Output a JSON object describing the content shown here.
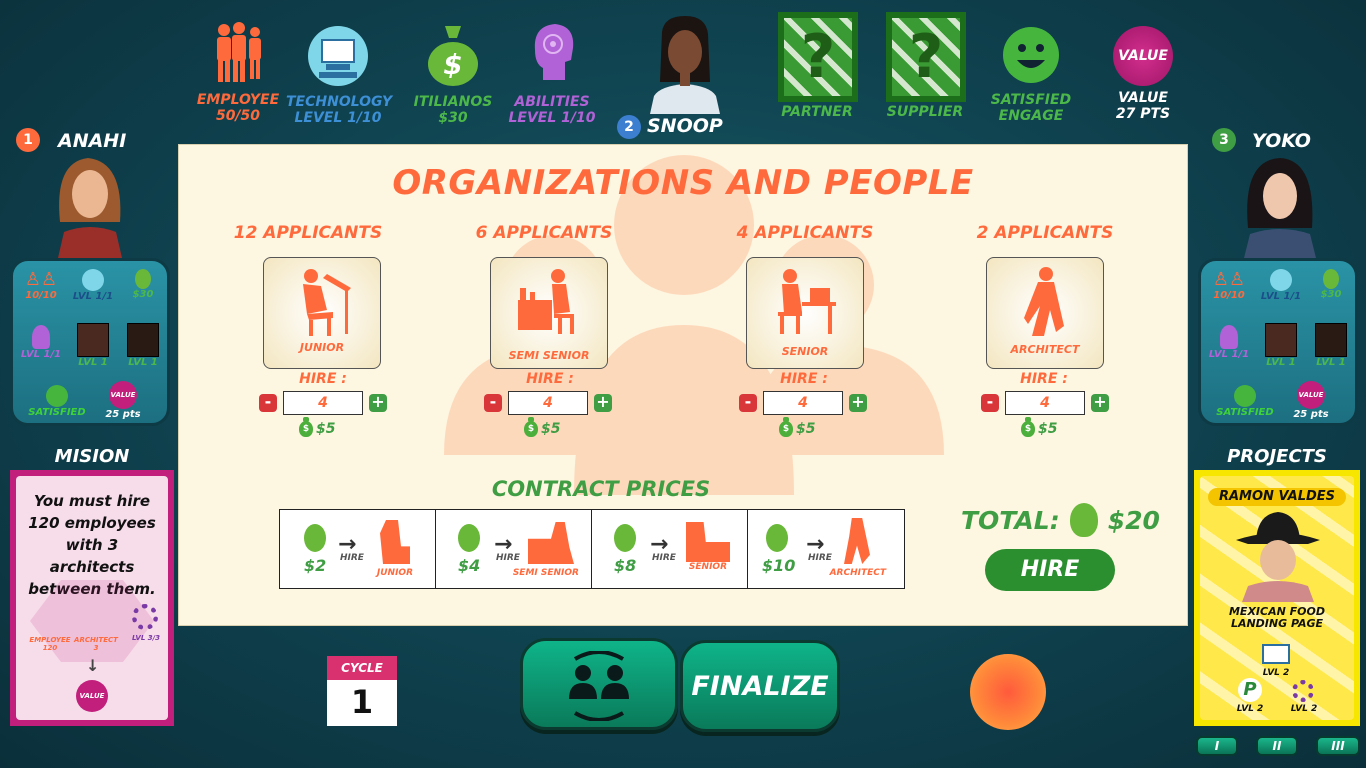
{
  "top_stats": {
    "employee": {
      "label": "EMPLOYEE",
      "value": "50/50"
    },
    "technology": {
      "label": "TECHNOLOGY",
      "value": "LEVEL  1/10"
    },
    "itilianos": {
      "label": "ITILIANOS",
      "value": "$30"
    },
    "abilities": {
      "label": "ABILITIES",
      "value": "LEVEL  1/10"
    },
    "partner": {
      "label": "PARTNER"
    },
    "supplier": {
      "label": "SUPPLIER"
    },
    "satisfied": {
      "label": "SATISFIED",
      "value": "ENGAGE"
    },
    "value": {
      "badge": "VALUE",
      "label": "VALUE",
      "value": "27 PTS"
    }
  },
  "players": {
    "center": {
      "number": "2",
      "name": "SNOOP"
    },
    "left": {
      "number": "1",
      "name": "ANAHI",
      "employees": "10/10",
      "tech": "LVL 1/1",
      "money": "$30",
      "ability": "LVL 1/1",
      "partner": "LVL 1",
      "supplier": "LVL 1",
      "satisfied": "SATISFIED",
      "value_badge": "VALUE",
      "pts": "25 pts"
    },
    "right": {
      "number": "3",
      "name": "YOKO",
      "employees": "10/10",
      "tech": "LVL 1/1",
      "money": "$30",
      "ability": "LVL 1/1",
      "partner": "LVL 1",
      "supplier": "LVL 1",
      "satisfied": "SATISFIED",
      "value_badge": "VALUE",
      "pts": "25 pts"
    }
  },
  "mission": {
    "title": "MISION",
    "text": "You must hire 120 employees with 3 architects between them.",
    "req_employee": "EMPLOYEE 120",
    "req_architect": "ARCHITECT 3",
    "req_level": "LVL 3/3",
    "value_badge": "VALUE"
  },
  "projects": {
    "title": "PROJECTS",
    "person": "RAMON VALDES",
    "project": "MEXICAN FOOD LANDING PAGE",
    "req1": "LVL 2",
    "req2": "LVL 2",
    "req3": "LVL 2",
    "tabs": [
      "I",
      "II",
      "III"
    ]
  },
  "panel": {
    "title": "ORGANIZATIONS AND PEOPLE",
    "roles": [
      {
        "applicants": "12  APPLICANTS",
        "name": "JUNIOR",
        "hire_label": "HIRE :",
        "qty": "4",
        "price": "$5"
      },
      {
        "applicants": "6 APPLICANTS",
        "name": "SEMI SENIOR",
        "hire_label": "HIRE :",
        "qty": "4",
        "price": "$5"
      },
      {
        "applicants": "4 APPLICANTS",
        "name": "SENIOR",
        "hire_label": "HIRE :",
        "qty": "4",
        "price": "$5"
      },
      {
        "applicants": "2 APPLICANTS",
        "name": "ARCHITECT",
        "hire_label": "HIRE :",
        "qty": "4",
        "price": "$5"
      }
    ],
    "contract_title": "CONTRACT PRICES",
    "contracts": [
      {
        "price": "$2",
        "hire": "HIRE",
        "role": "JUNIOR"
      },
      {
        "price": "$4",
        "hire": "HIRE",
        "role": "SEMI SENIOR"
      },
      {
        "price": "$8",
        "hire": "HIRE",
        "role": "SENIOR"
      },
      {
        "price": "$10",
        "hire": "HIRE",
        "role": "ARCHITECT"
      }
    ],
    "total_label": "TOTAL:",
    "total_value": "$20",
    "hire_button": "HIRE"
  },
  "bottom": {
    "cycle_label": "CYCLE",
    "cycle_value": "1",
    "finalize": "FINALIZE"
  },
  "colors": {
    "accent": "#ff6a3d",
    "green": "#3f9d44",
    "teal": "#104552",
    "panel": "#fdf6e0"
  }
}
